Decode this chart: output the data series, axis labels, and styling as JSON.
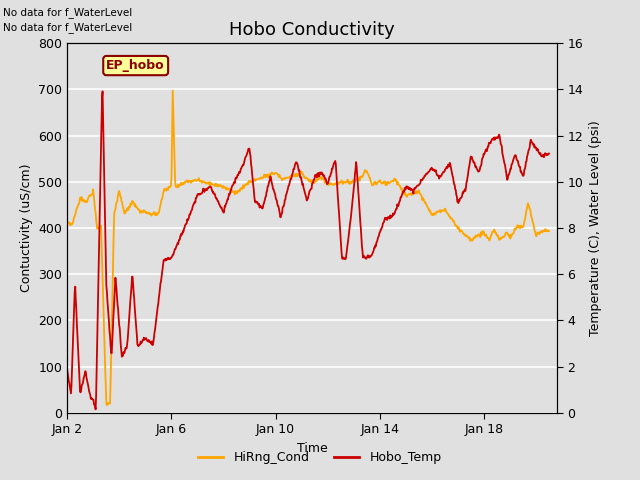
{
  "title": "Hobo Conductivity",
  "xlabel": "Time",
  "ylabel_left": "Contuctivity (uS/cm)",
  "ylabel_right": "Temperature (C), Water Level (psi)",
  "annotations": [
    "No data for f_WaterLevel",
    "No data for f_WaterLevel"
  ],
  "ep_hobo_label": "EP_hobo",
  "xlim": [
    0,
    18.8
  ],
  "ylim_left": [
    0,
    800
  ],
  "ylim_right": [
    0,
    16
  ],
  "yticks_left": [
    0,
    100,
    200,
    300,
    400,
    500,
    600,
    700,
    800
  ],
  "yticks_right": [
    0,
    2,
    4,
    6,
    8,
    10,
    12,
    14,
    16
  ],
  "xtick_labels": [
    "Jan 2",
    "Jan 6",
    "Jan 10",
    "Jan 14",
    "Jan 18"
  ],
  "xtick_positions": [
    0,
    4,
    8,
    12,
    16
  ],
  "legend_labels": [
    "HiRng_Cond",
    "Hobo_Temp"
  ],
  "legend_colors": [
    "#FFA500",
    "#CC0000"
  ],
  "bg_color": "#E0E0E0",
  "plot_bg_color": "#E0E0E0",
  "grid_color": "#FFFFFF",
  "cond_color": "#FFA500",
  "temp_color": "#CC0000",
  "cond_linewidth": 1.3,
  "temp_linewidth": 1.3,
  "title_fontsize": 13,
  "label_fontsize": 9,
  "tick_fontsize": 9
}
